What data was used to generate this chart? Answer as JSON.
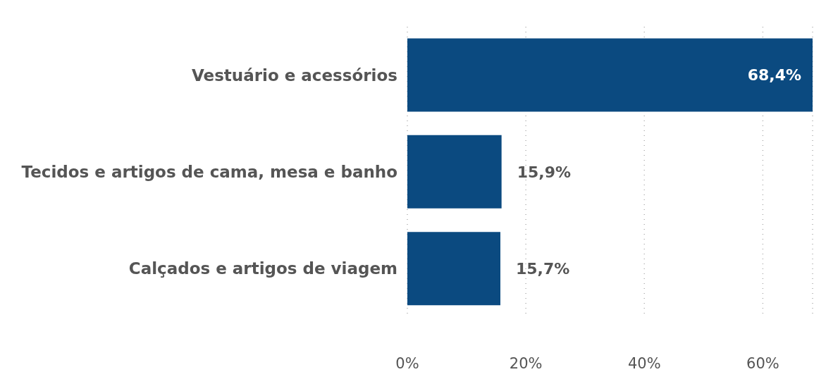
{
  "chart_data": {
    "type": "bar",
    "orientation": "horizontal",
    "categories": [
      "Vestuário e acessórios",
      "Tecidos e artigos de cama, mesa e banho",
      "Calçados e artigos de viagem"
    ],
    "values": [
      68.4,
      15.9,
      15.7
    ],
    "color": "#0b4a80",
    "value_labels": [
      "68,4%",
      "15,9%",
      "15,7%"
    ],
    "xlim": [
      0,
      68.4
    ],
    "xticks": [
      {
        "value": 0,
        "label": "0%"
      },
      {
        "value": 20,
        "label": "20%"
      },
      {
        "value": 40,
        "label": "40%"
      },
      {
        "value": 60,
        "label": "60%"
      }
    ],
    "grid": "x",
    "legend": false
  }
}
